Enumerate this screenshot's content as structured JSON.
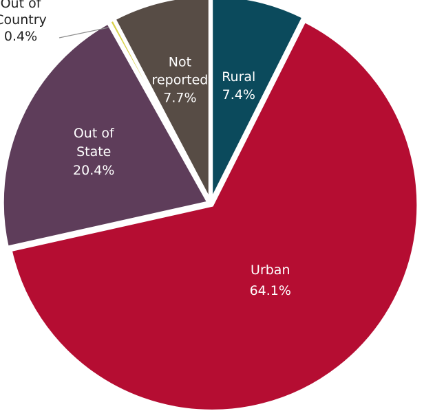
{
  "chart_data": {
    "type": "pie",
    "title": "",
    "slices": [
      {
        "label_lines": [
          "Rural"
        ],
        "value": 7.4,
        "value_label": "7.4%",
        "color": "#0b4a5c"
      },
      {
        "label_lines": [
          "Urban"
        ],
        "value": 64.1,
        "value_label": "64.1%",
        "color": "#b50d32"
      },
      {
        "label_lines": [
          "Out of",
          "State"
        ],
        "value": 20.4,
        "value_label": "20.4%",
        "color": "#5e3d5a"
      },
      {
        "label_lines": [
          "Out of",
          "Country"
        ],
        "value": 0.4,
        "value_label": "0.4%",
        "color": "#d9d24a"
      },
      {
        "label_lines": [
          "Not",
          "reported"
        ],
        "value": 7.7,
        "value_label": "7.7%",
        "color": "#574c45"
      }
    ]
  }
}
